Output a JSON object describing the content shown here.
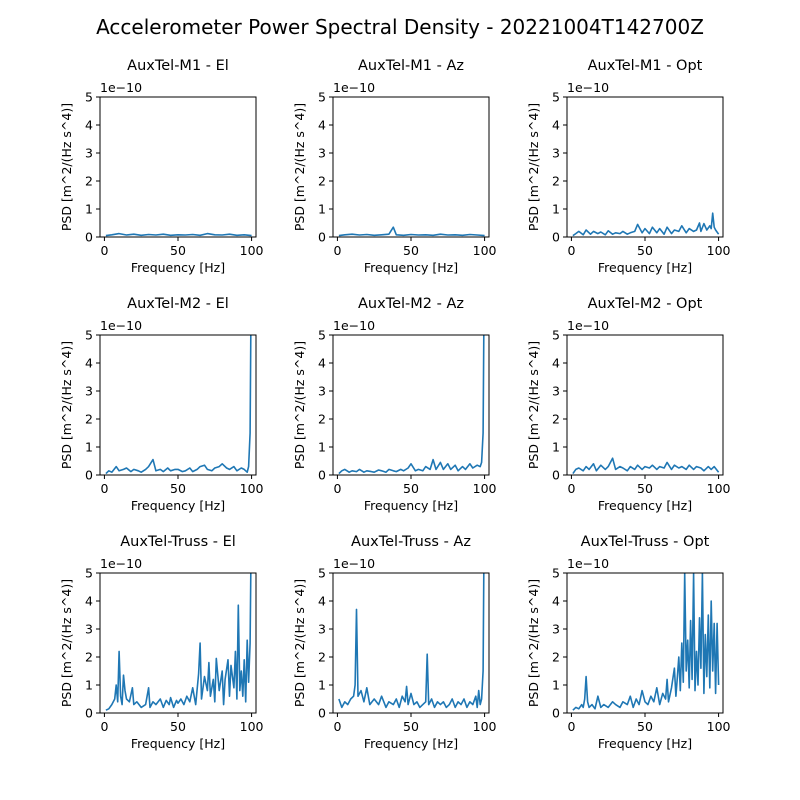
{
  "suptitle": "Accelerometer Power Spectral Density - 20221004T142700Z",
  "chart_data": [
    {
      "type": "line",
      "title": "AuxTel-M1 - El",
      "xlabel": "Frequency [Hz]",
      "ylabel": "PSD [m^2/(Hz s^4)]",
      "y_offset_label": "1e−10",
      "xlim": [
        -3,
        103
      ],
      "ylim": [
        0,
        5
      ],
      "xticks": [
        0,
        50,
        100
      ],
      "yticks": [
        0,
        1,
        2,
        3,
        4,
        5
      ],
      "color": "#1f77b4",
      "series": [
        {
          "x": [
            1,
            5,
            10,
            15,
            20,
            25,
            30,
            35,
            40,
            45,
            50,
            55,
            60,
            65,
            70,
            75,
            80,
            85,
            90,
            95,
            100
          ],
          "y": [
            0.05,
            0.08,
            0.12,
            0.07,
            0.1,
            0.06,
            0.09,
            0.07,
            0.1,
            0.06,
            0.08,
            0.07,
            0.09,
            0.06,
            0.12,
            0.08,
            0.07,
            0.1,
            0.06,
            0.08,
            0.05
          ]
        }
      ]
    },
    {
      "type": "line",
      "title": "AuxTel-M1 - Az",
      "xlabel": "Frequency [Hz]",
      "ylabel": "PSD [m^2/(Hz s^4)]",
      "y_offset_label": "1e−10",
      "xlim": [
        -3,
        103
      ],
      "ylim": [
        0,
        5
      ],
      "xticks": [
        0,
        50,
        100
      ],
      "yticks": [
        0,
        1,
        2,
        3,
        4,
        5
      ],
      "color": "#1f77b4",
      "series": [
        {
          "x": [
            1,
            5,
            10,
            15,
            20,
            25,
            30,
            35,
            38,
            40,
            45,
            50,
            55,
            60,
            65,
            70,
            75,
            80,
            85,
            90,
            95,
            100
          ],
          "y": [
            0.05,
            0.08,
            0.1,
            0.07,
            0.09,
            0.06,
            0.08,
            0.1,
            0.35,
            0.08,
            0.06,
            0.09,
            0.07,
            0.08,
            0.06,
            0.1,
            0.07,
            0.08,
            0.06,
            0.09,
            0.07,
            0.05
          ]
        }
      ]
    },
    {
      "type": "line",
      "title": "AuxTel-M1 - Opt",
      "xlabel": "Frequency [Hz]",
      "ylabel": "PSD [m^2/(Hz s^4)]",
      "y_offset_label": "1e−10",
      "xlim": [
        -3,
        103
      ],
      "ylim": [
        0,
        5
      ],
      "xticks": [
        0,
        50,
        100
      ],
      "yticks": [
        0,
        1,
        2,
        3,
        4,
        5
      ],
      "color": "#1f77b4",
      "series": [
        {
          "x": [
            1,
            3,
            5,
            8,
            10,
            13,
            15,
            18,
            20,
            23,
            25,
            28,
            30,
            33,
            35,
            38,
            40,
            43,
            45,
            48,
            50,
            53,
            55,
            58,
            60,
            63,
            65,
            68,
            70,
            73,
            75,
            78,
            80,
            83,
            85,
            87,
            88,
            90,
            92,
            94,
            95,
            96,
            97,
            98,
            100
          ],
          "y": [
            0.05,
            0.12,
            0.2,
            0.08,
            0.25,
            0.1,
            0.2,
            0.12,
            0.18,
            0.08,
            0.22,
            0.1,
            0.15,
            0.12,
            0.2,
            0.1,
            0.15,
            0.2,
            0.45,
            0.15,
            0.3,
            0.12,
            0.35,
            0.15,
            0.3,
            0.1,
            0.35,
            0.12,
            0.25,
            0.2,
            0.4,
            0.15,
            0.3,
            0.2,
            0.25,
            0.5,
            0.2,
            0.48,
            0.25,
            0.4,
            0.3,
            0.85,
            0.35,
            0.25,
            0.1
          ]
        }
      ]
    },
    {
      "type": "line",
      "title": "AuxTel-M2 - El",
      "xlabel": "Frequency [Hz]",
      "ylabel": "PSD [m^2/(Hz s^4)]",
      "y_offset_label": "1e−10",
      "xlim": [
        -3,
        103
      ],
      "ylim": [
        0,
        5
      ],
      "xticks": [
        0,
        50,
        100
      ],
      "yticks": [
        0,
        1,
        2,
        3,
        4,
        5
      ],
      "color": "#1f77b4",
      "series": [
        {
          "x": [
            1,
            3,
            5,
            8,
            10,
            13,
            15,
            18,
            20,
            23,
            25,
            28,
            30,
            33,
            35,
            38,
            40,
            43,
            45,
            48,
            50,
            53,
            55,
            58,
            60,
            63,
            65,
            68,
            70,
            73,
            75,
            78,
            80,
            83,
            85,
            88,
            90,
            93,
            95,
            97,
            98,
            99,
            99.5,
            100
          ],
          "y": [
            0.05,
            0.15,
            0.1,
            0.3,
            0.15,
            0.2,
            0.25,
            0.12,
            0.2,
            0.15,
            0.1,
            0.2,
            0.3,
            0.55,
            0.15,
            0.2,
            0.12,
            0.25,
            0.15,
            0.2,
            0.2,
            0.12,
            0.15,
            0.25,
            0.12,
            0.2,
            0.3,
            0.35,
            0.2,
            0.15,
            0.25,
            0.3,
            0.4,
            0.25,
            0.2,
            0.3,
            0.15,
            0.25,
            0.2,
            0.1,
            0.3,
            1.5,
            5,
            5
          ]
        }
      ]
    },
    {
      "type": "line",
      "title": "AuxTel-M2 - Az",
      "xlabel": "Frequency [Hz]",
      "ylabel": "PSD [m^2/(Hz s^4)]",
      "y_offset_label": "1e−10",
      "xlim": [
        -3,
        103
      ],
      "ylim": [
        0,
        5
      ],
      "xticks": [
        0,
        50,
        100
      ],
      "yticks": [
        0,
        1,
        2,
        3,
        4,
        5
      ],
      "color": "#1f77b4",
      "series": [
        {
          "x": [
            1,
            3,
            5,
            8,
            10,
            13,
            15,
            18,
            20,
            23,
            25,
            28,
            30,
            33,
            35,
            38,
            40,
            43,
            45,
            48,
            50,
            53,
            55,
            58,
            60,
            63,
            65,
            67,
            70,
            72,
            75,
            77,
            80,
            82,
            85,
            87,
            90,
            92,
            95,
            97,
            98,
            99,
            99.5,
            100
          ],
          "y": [
            0.05,
            0.15,
            0.2,
            0.1,
            0.15,
            0.12,
            0.2,
            0.1,
            0.15,
            0.12,
            0.1,
            0.18,
            0.15,
            0.1,
            0.2,
            0.15,
            0.12,
            0.2,
            0.15,
            0.25,
            0.4,
            0.15,
            0.2,
            0.15,
            0.3,
            0.2,
            0.55,
            0.2,
            0.45,
            0.2,
            0.4,
            0.2,
            0.35,
            0.15,
            0.3,
            0.2,
            0.4,
            0.25,
            0.35,
            0.3,
            0.45,
            1.5,
            5,
            5
          ]
        }
      ]
    },
    {
      "type": "line",
      "title": "AuxTel-M2 - Opt",
      "xlabel": "Frequency [Hz]",
      "ylabel": "PSD [m^2/(Hz s^4)]",
      "y_offset_label": "1e−10",
      "xlim": [
        -3,
        103
      ],
      "ylim": [
        0,
        5
      ],
      "xticks": [
        0,
        50,
        100
      ],
      "yticks": [
        0,
        1,
        2,
        3,
        4,
        5
      ],
      "color": "#1f77b4",
      "series": [
        {
          "x": [
            1,
            3,
            5,
            8,
            10,
            12,
            15,
            17,
            20,
            23,
            25,
            28,
            30,
            33,
            35,
            38,
            40,
            43,
            45,
            48,
            50,
            53,
            55,
            58,
            60,
            63,
            65,
            68,
            70,
            73,
            75,
            78,
            80,
            83,
            85,
            88,
            90,
            93,
            95,
            97,
            100
          ],
          "y": [
            0.05,
            0.2,
            0.25,
            0.15,
            0.3,
            0.2,
            0.4,
            0.15,
            0.35,
            0.2,
            0.3,
            0.6,
            0.2,
            0.3,
            0.25,
            0.15,
            0.3,
            0.2,
            0.35,
            0.2,
            0.3,
            0.25,
            0.35,
            0.2,
            0.3,
            0.25,
            0.45,
            0.2,
            0.35,
            0.25,
            0.3,
            0.2,
            0.35,
            0.2,
            0.3,
            0.25,
            0.15,
            0.3,
            0.2,
            0.3,
            0.1
          ]
        }
      ]
    },
    {
      "type": "line",
      "title": "AuxTel-Truss - El",
      "xlabel": "Frequency [Hz]",
      "ylabel": "PSD [m^2/(Hz s^4)]",
      "y_offset_label": "1e−10",
      "xlim": [
        -3,
        103
      ],
      "ylim": [
        0,
        5
      ],
      "xticks": [
        0,
        50,
        100
      ],
      "yticks": [
        0,
        1,
        2,
        3,
        4,
        5
      ],
      "color": "#1f77b4",
      "series": [
        {
          "x": [
            1,
            3,
            5,
            7,
            8,
            9,
            10,
            11,
            12,
            13,
            14,
            15,
            17,
            19,
            20,
            22,
            25,
            28,
            30,
            31,
            33,
            35,
            38,
            40,
            42,
            44,
            45,
            47,
            49,
            50,
            52,
            54,
            56,
            58,
            60,
            62,
            64,
            65,
            66,
            68,
            70,
            71,
            72,
            74,
            75,
            76,
            78,
            80,
            81,
            82,
            84,
            85,
            86,
            88,
            89,
            90,
            91,
            92,
            93,
            94,
            95,
            96,
            97,
            98,
            99,
            99.5,
            100
          ],
          "y": [
            0.1,
            0.15,
            0.3,
            0.5,
            1.0,
            0.4,
            2.2,
            0.6,
            0.3,
            1.35,
            0.8,
            0.5,
            0.4,
            0.9,
            0.3,
            0.4,
            0.2,
            0.3,
            0.9,
            0.2,
            0.4,
            0.3,
            0.5,
            0.2,
            0.45,
            0.3,
            0.55,
            0.2,
            0.45,
            0.35,
            0.5,
            0.3,
            0.6,
            0.4,
            0.9,
            0.3,
            1.4,
            2.5,
            0.5,
            1.3,
            0.8,
            1.8,
            0.6,
            1.2,
            0.4,
            1.95,
            0.8,
            1.5,
            0.3,
            1.2,
            1.9,
            0.6,
            1.7,
            0.9,
            2.2,
            0.5,
            3.85,
            0.8,
            1.5,
            0.6,
            1.9,
            0.4,
            2.6,
            1.1,
            2.5,
            5,
            5
          ]
        }
      ]
    },
    {
      "type": "line",
      "title": "AuxTel-Truss - Az",
      "xlabel": "Frequency [Hz]",
      "ylabel": "PSD [m^2/(Hz s^4)]",
      "y_offset_label": "1e−10",
      "xlim": [
        -3,
        103
      ],
      "ylim": [
        0,
        5
      ],
      "xticks": [
        0,
        50,
        100
      ],
      "yticks": [
        0,
        1,
        2,
        3,
        4,
        5
      ],
      "color": "#1f77b4",
      "series": [
        {
          "x": [
            1,
            3,
            5,
            7,
            9,
            11,
            12,
            13,
            14,
            16,
            18,
            20,
            22,
            25,
            28,
            30,
            33,
            35,
            38,
            40,
            42,
            44,
            46,
            47,
            48,
            50,
            52,
            54,
            56,
            58,
            60,
            61,
            62,
            64,
            66,
            68,
            70,
            72,
            74,
            76,
            78,
            80,
            82,
            84,
            86,
            88,
            90,
            92,
            94,
            95,
            96,
            97,
            98,
            99,
            99.5,
            100
          ],
          "y": [
            0.5,
            0.2,
            0.4,
            0.3,
            0.5,
            0.6,
            1.0,
            3.7,
            0.6,
            0.8,
            0.4,
            0.9,
            0.3,
            0.5,
            0.3,
            0.6,
            0.2,
            0.4,
            0.3,
            0.5,
            0.2,
            0.6,
            0.4,
            0.95,
            0.3,
            0.7,
            0.3,
            0.4,
            0.2,
            0.3,
            0.4,
            2.1,
            0.3,
            0.5,
            0.2,
            0.4,
            0.3,
            0.4,
            0.2,
            0.3,
            0.5,
            0.2,
            0.4,
            0.3,
            0.5,
            0.2,
            0.4,
            0.3,
            0.6,
            0.2,
            0.8,
            0.3,
            0.5,
            1.5,
            5,
            5
          ]
        }
      ]
    },
    {
      "type": "line",
      "title": "AuxTel-Truss - Opt",
      "xlabel": "Frequency [Hz]",
      "ylabel": "PSD [m^2/(Hz s^4)]",
      "y_offset_label": "1e−10",
      "xlim": [
        -3,
        103
      ],
      "ylim": [
        0,
        5
      ],
      "xticks": [
        0,
        50,
        100
      ],
      "yticks": [
        0,
        1,
        2,
        3,
        4,
        5
      ],
      "color": "#1f77b4",
      "series": [
        {
          "x": [
            1,
            3,
            5,
            7,
            8,
            9,
            10,
            11,
            12,
            14,
            16,
            18,
            20,
            22,
            25,
            28,
            30,
            33,
            35,
            38,
            40,
            42,
            44,
            46,
            48,
            50,
            52,
            54,
            56,
            58,
            60,
            62,
            64,
            65,
            66,
            68,
            70,
            71,
            72,
            73,
            74,
            75,
            76,
            77,
            78,
            79,
            80,
            81,
            82,
            83,
            84,
            85,
            86,
            87,
            88,
            89,
            90,
            91,
            92,
            93,
            94,
            95,
            96,
            97,
            98,
            99,
            100
          ],
          "y": [
            0.1,
            0.2,
            0.15,
            0.3,
            0.2,
            0.5,
            1.3,
            0.4,
            0.2,
            0.3,
            0.15,
            0.6,
            0.2,
            0.3,
            0.2,
            0.4,
            0.3,
            0.2,
            0.4,
            0.3,
            0.6,
            0.2,
            0.5,
            0.3,
            0.8,
            0.4,
            0.3,
            0.6,
            0.4,
            0.9,
            0.3,
            0.7,
            0.5,
            1.2,
            0.4,
            0.9,
            1.6,
            0.6,
            1.3,
            2.0,
            0.8,
            2.5,
            1.1,
            5.0,
            1.5,
            2.6,
            0.9,
            3.3,
            1.2,
            5.0,
            0.8,
            2.2,
            1.0,
            3.4,
            1.6,
            5.0,
            0.7,
            2.8,
            1.3,
            3.5,
            0.9,
            4.0,
            1.5,
            3.2,
            0.7,
            3.2,
            1.0
          ]
        }
      ]
    }
  ]
}
